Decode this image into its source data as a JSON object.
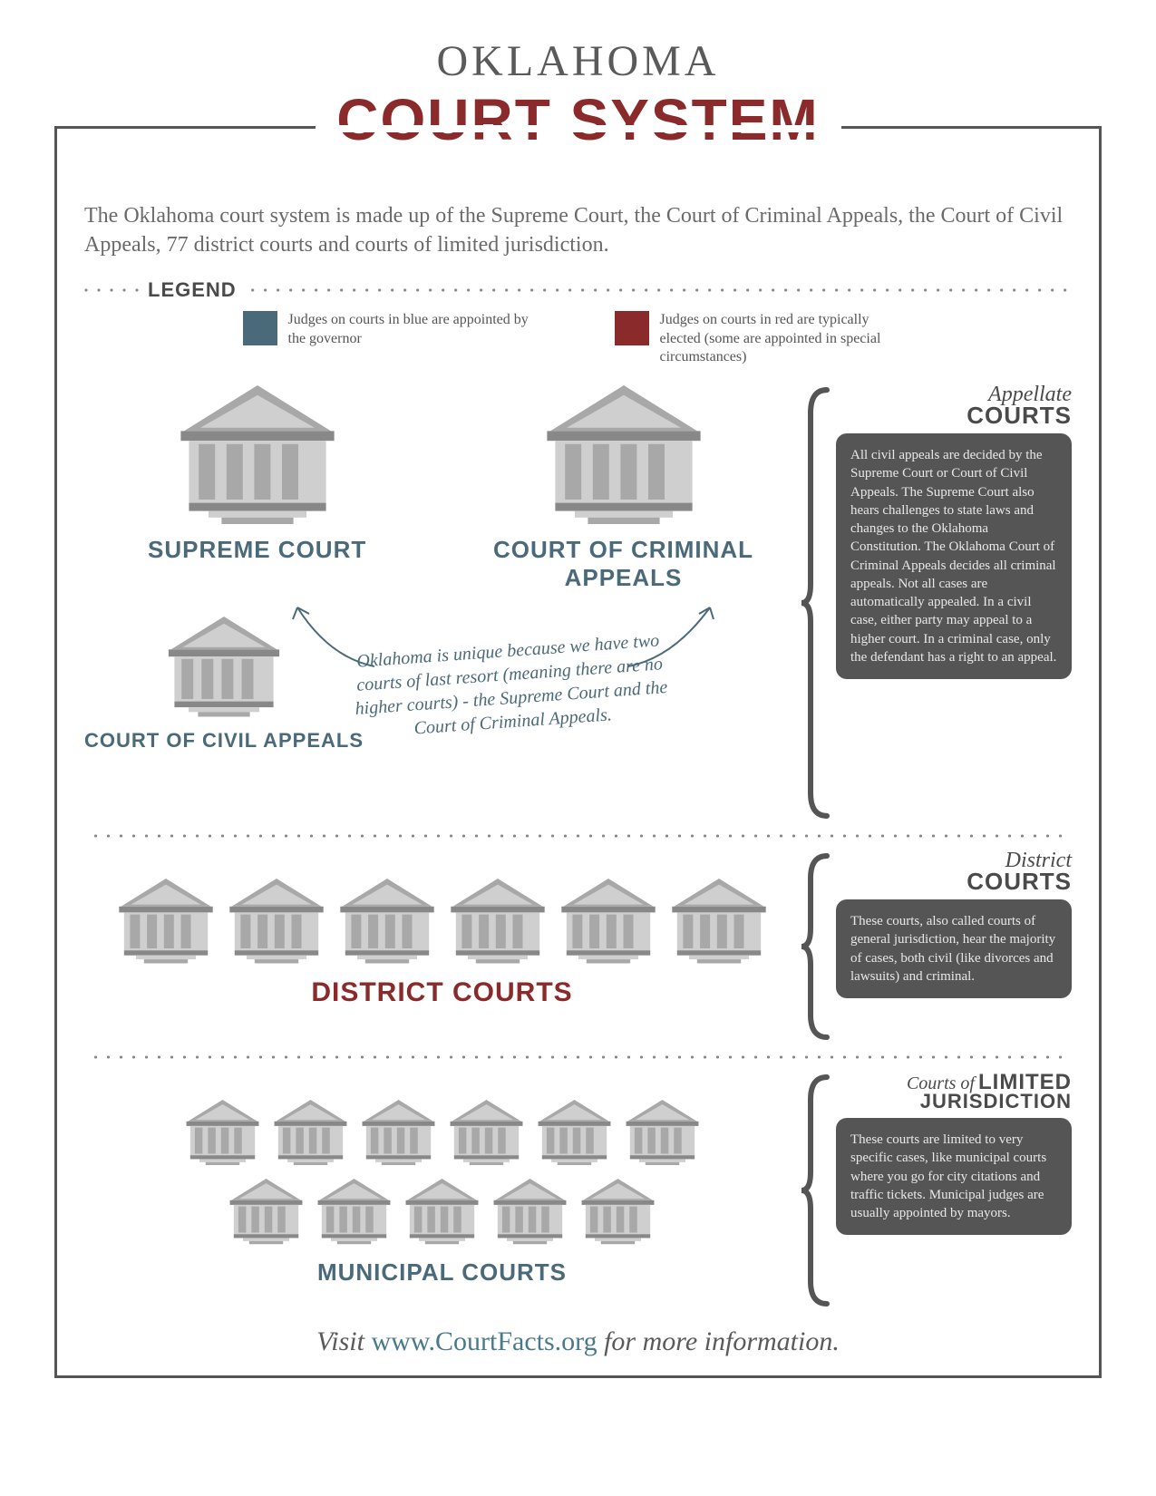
{
  "title": {
    "line1": "OKLAHOMA",
    "line2": "COURT SYSTEM"
  },
  "colors": {
    "red": "#8a2a2a",
    "blue": "#4a6a7a",
    "gray_text": "#5a5a5a",
    "box_bg": "#555555",
    "building_roof": "#a8a8a8",
    "building_body": "#cfcfcf",
    "building_dark": "#888888"
  },
  "intro": "The Oklahoma court system is made up of the Supreme Court, the Court of Criminal Appeals, the Court of Civil Appeals, 77 district courts and courts of limited jurisdiction.",
  "legend": {
    "label": "LEGEND",
    "items": [
      {
        "color": "#4a6a7a",
        "text": "Judges on courts in blue are appointed by the governor"
      },
      {
        "color": "#8a2a2a",
        "text": "Judges on courts in red are typically elected (some are appointed in special circumstances)"
      }
    ]
  },
  "appellate": {
    "supreme_label": "SUPREME COURT",
    "criminal_label": "COURT OF CRIMINAL APPEALS",
    "civil_label": "COURT OF CIVIL APPEALS",
    "label_color": "#4a6a7a",
    "note": "Oklahoma is unique because we have two courts of last resort (meaning there are no higher courts) - the Supreme Court and the Court of Criminal Appeals.",
    "info_title1": "Appellate",
    "info_title2": "COURTS",
    "info_body": "All civil appeals are decided by the Supreme Court or Court of Civil Appeals. The Supreme Court also hears challenges to state laws and changes to the Oklahoma Constitution. The Oklahoma Court of Criminal Appeals decides all criminal appeals. Not all cases are automatically appealed. In a civil case, either party may appeal to a higher court. In a criminal case, only the defendant has a right to an appeal."
  },
  "district": {
    "label": "DISTRICT COURTS",
    "label_color": "#8a2a2a",
    "count": 6,
    "info_title1": "District",
    "info_title2": "COURTS",
    "info_body": "These courts, also called courts of general jurisdiction, hear the majority of cases, both civil (like divorces and lawsuits) and criminal."
  },
  "municipal": {
    "label": "MUNICIPAL COURTS",
    "label_color": "#4a6a7a",
    "row1": 6,
    "row2": 5,
    "info_title1": "Courts of",
    "info_title2_a": "LIMITED",
    "info_title2_b": "JURISDICTION",
    "info_body": "These courts are limited to very specific cases, like municipal courts where you go for city citations and traffic tickets. Municipal judges are usually appointed by mayors."
  },
  "footer": {
    "pre": "Visit ",
    "url": "www.CourtFacts.org",
    "post": " for more information."
  },
  "building_sizes": {
    "large": 180,
    "medium": 130,
    "small_d": 110,
    "small_m": 85
  }
}
